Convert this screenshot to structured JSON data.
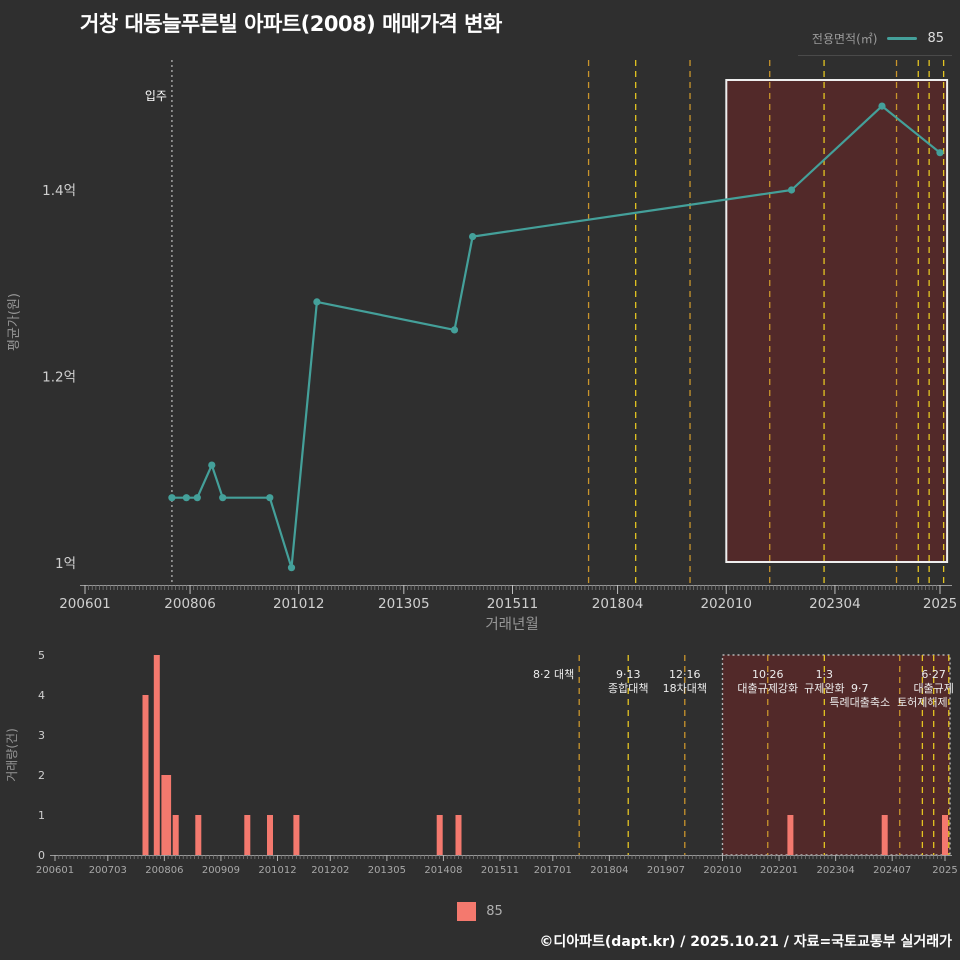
{
  "page": {
    "title": "거창 대동늘푸른빌 아파트(2008) 매매가격 변화",
    "footer": "©디아파트(dapt.kr) / 2025.10.21 / 자료=국토교통부 실거래가"
  },
  "legend_top": {
    "label": "전용면적(㎡)",
    "value": "85"
  },
  "legend_bottom": {
    "value": "85"
  },
  "colors": {
    "background": "#2f2f2f",
    "series": "#44a09a",
    "bar": "#f4796e",
    "highlight_fill": "rgba(140,32,32,0.38)",
    "highlight_border": "#eeeeee",
    "policy_yellow": "#e3c422",
    "policy_orange": "#c9952c"
  },
  "chart_data": [
    {
      "type": "line",
      "name": "평균 매매가격",
      "series_name": "85",
      "xlabel": "거래년월",
      "ylabel": "평균가(원)",
      "unit": "억원",
      "ylim": [
        0.95,
        1.55
      ],
      "x_range": [
        "2006-01",
        "2025-09"
      ],
      "grid": false,
      "y_ticks": [
        {
          "value": 1.0,
          "label": "1억"
        },
        {
          "value": 1.2,
          "label": "1.2억"
        },
        {
          "value": 1.4,
          "label": "1.4억"
        }
      ],
      "x_ticks": [
        {
          "date": "2006-01",
          "label": "200601"
        },
        {
          "date": "2008-06",
          "label": "200806"
        },
        {
          "date": "2010-12",
          "label": "201012"
        },
        {
          "date": "2013-05",
          "label": "201305"
        },
        {
          "date": "2015-11",
          "label": "201511"
        },
        {
          "date": "2018-04",
          "label": "201804"
        },
        {
          "date": "2020-10",
          "label": "202010"
        },
        {
          "date": "2023-04",
          "label": "202304"
        },
        {
          "date": "2025-09",
          "label": "2025"
        }
      ],
      "points": [
        [
          "2008-01",
          1.07
        ],
        [
          "2008-05",
          1.07
        ],
        [
          "2008-08",
          1.07
        ],
        [
          "2008-12",
          1.105
        ],
        [
          "2009-03",
          1.07
        ],
        [
          "2010-04",
          1.07
        ],
        [
          "2010-10",
          0.995
        ],
        [
          "2011-05",
          1.28
        ],
        [
          "2014-07",
          1.25
        ],
        [
          "2014-12",
          1.35
        ],
        [
          "2022-04",
          1.4
        ],
        [
          "2024-05",
          1.49
        ],
        [
          "2025-09",
          1.44
        ]
      ],
      "move_in": {
        "date": "2008-01",
        "label": "입주"
      },
      "highlight_box": {
        "from": "2020-10",
        "to": "2025-09"
      },
      "policies": [
        {
          "date": "2017-08",
          "color": "#c9952c",
          "labels": [
            {
              "text": "8·2 대책",
              "row": 0,
              "anchor": "end"
            }
          ]
        },
        {
          "date": "2018-09",
          "color": "#e3c422",
          "labels": [
            {
              "text": "9·13",
              "row": 0
            },
            {
              "text": "종합대책",
              "row": 1
            }
          ]
        },
        {
          "date": "2019-12",
          "color": "#c9952c",
          "labels": [
            {
              "text": "12·16",
              "row": 0
            },
            {
              "text": "18차대책",
              "row": 1
            }
          ]
        },
        {
          "date": "2021-10",
          "color": "#c9952c",
          "labels": [
            {
              "text": "10·26",
              "row": 0
            },
            {
              "text": "대출규제강화",
              "row": 1
            }
          ]
        },
        {
          "date": "2023-01",
          "color": "#e3c422",
          "labels": [
            {
              "text": "1·3",
              "row": 0
            },
            {
              "text": "규제완화",
              "row": 1
            }
          ]
        },
        {
          "date": "2024-09",
          "color": "#c9952c",
          "labels": [
            {
              "text": "9·7",
              "row": 1,
              "dx": -40
            },
            {
              "text": "특례대출축소",
              "row": 2,
              "dx": -40
            }
          ]
        },
        {
          "date": "2025-03",
          "color": "#e3c422",
          "labels": [
            {
              "text": "토허제해제",
              "row": 2
            }
          ]
        },
        {
          "date": "2025-06",
          "color": "#e3c422",
          "labels": [
            {
              "text": "6·27",
              "row": 0
            },
            {
              "text": "대출규제",
              "row": 1
            }
          ]
        },
        {
          "date": "2025-10",
          "color": "#e3c422",
          "labels": []
        }
      ]
    },
    {
      "type": "bar",
      "name": "거래량",
      "ylabel": "거래량(건)",
      "ylim": [
        0,
        5
      ],
      "y_ticks": [
        "0",
        "1",
        "2",
        "3",
        "4",
        "5"
      ],
      "x_range": [
        "2006-01",
        "2025-09"
      ],
      "x_ticks": [
        {
          "date": "2006-01",
          "label": "200601"
        },
        {
          "date": "2007-03",
          "label": "200703"
        },
        {
          "date": "2008-06",
          "label": "200806"
        },
        {
          "date": "2009-09",
          "label": "200909"
        },
        {
          "date": "2010-12",
          "label": "201012"
        },
        {
          "date": "2012-02",
          "label": "201202"
        },
        {
          "date": "2013-05",
          "label": "201305"
        },
        {
          "date": "2014-08",
          "label": "201408"
        },
        {
          "date": "2015-11",
          "label": "201511"
        },
        {
          "date": "2017-01",
          "label": "201701"
        },
        {
          "date": "2018-04",
          "label": "201804"
        },
        {
          "date": "2019-07",
          "label": "201907"
        },
        {
          "date": "2020-10",
          "label": "202010"
        },
        {
          "date": "2022-01",
          "label": "202201"
        },
        {
          "date": "2023-04",
          "label": "202304"
        },
        {
          "date": "2024-07",
          "label": "202407"
        },
        {
          "date": "2025-09",
          "label": "2025"
        }
      ],
      "bars": [
        [
          "2008-01",
          4
        ],
        [
          "2008-04",
          5
        ],
        [
          "2008-06",
          2
        ],
        [
          "2008-07",
          2
        ],
        [
          "2008-09",
          1
        ],
        [
          "2009-03",
          1
        ],
        [
          "2010-04",
          1
        ],
        [
          "2010-10",
          1
        ],
        [
          "2011-05",
          1
        ],
        [
          "2014-07",
          1
        ],
        [
          "2014-12",
          1
        ],
        [
          "2022-04",
          1
        ],
        [
          "2024-05",
          1
        ],
        [
          "2025-09",
          1
        ]
      ],
      "highlight_box": {
        "from": "2020-10",
        "to": "2025-09"
      }
    }
  ]
}
